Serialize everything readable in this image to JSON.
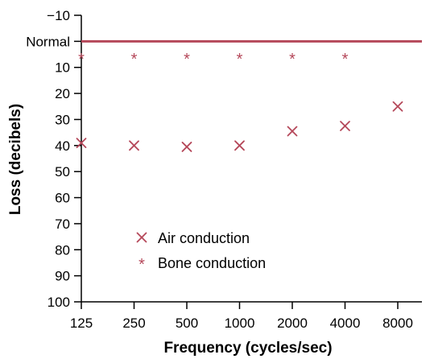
{
  "chart_data": {
    "type": "scatter",
    "title": "",
    "xlabel": "Frequency (cycles/sec)",
    "ylabel": "Loss (decibels)",
    "x_categories": [
      "125",
      "250",
      "500",
      "1000",
      "2000",
      "4000",
      "8000"
    ],
    "y_ticks": [
      {
        "value": -10,
        "label": "−10"
      },
      {
        "value": 0,
        "label": "Normal"
      },
      {
        "value": 10,
        "label": "10"
      },
      {
        "value": 20,
        "label": "20"
      },
      {
        "value": 30,
        "label": "30"
      },
      {
        "value": 40,
        "label": "40"
      },
      {
        "value": 50,
        "label": "50"
      },
      {
        "value": 60,
        "label": "60"
      },
      {
        "value": 70,
        "label": "70"
      },
      {
        "value": 80,
        "label": "80"
      },
      {
        "value": 90,
        "label": "90"
      },
      {
        "value": 100,
        "label": "100"
      }
    ],
    "ylim": [
      -10,
      100
    ],
    "y_inverted": true,
    "grid": false,
    "reference_line": {
      "value": 0,
      "label": "Normal",
      "color": "#b5485a"
    },
    "series": [
      {
        "name": "Air conduction",
        "marker": "x",
        "color": "#b5485a",
        "points": [
          {
            "x": "125",
            "y": 39
          },
          {
            "x": "250",
            "y": 40
          },
          {
            "x": "500",
            "y": 40.5
          },
          {
            "x": "1000",
            "y": 40
          },
          {
            "x": "2000",
            "y": 34.5
          },
          {
            "x": "4000",
            "y": 32.5
          },
          {
            "x": "8000",
            "y": 25
          }
        ]
      },
      {
        "name": "Bone conduction",
        "marker": "asterisk",
        "color": "#b5485a",
        "points": [
          {
            "x": "125",
            "y": 6
          },
          {
            "x": "250",
            "y": 6
          },
          {
            "x": "500",
            "y": 6
          },
          {
            "x": "1000",
            "y": 6
          },
          {
            "x": "2000",
            "y": 6
          },
          {
            "x": "4000",
            "y": 6
          }
        ]
      }
    ],
    "legend": {
      "placement": "bottom-left"
    }
  },
  "colors": {
    "accent": "#b5485a",
    "axis": "#000000",
    "text": "#000000"
  }
}
